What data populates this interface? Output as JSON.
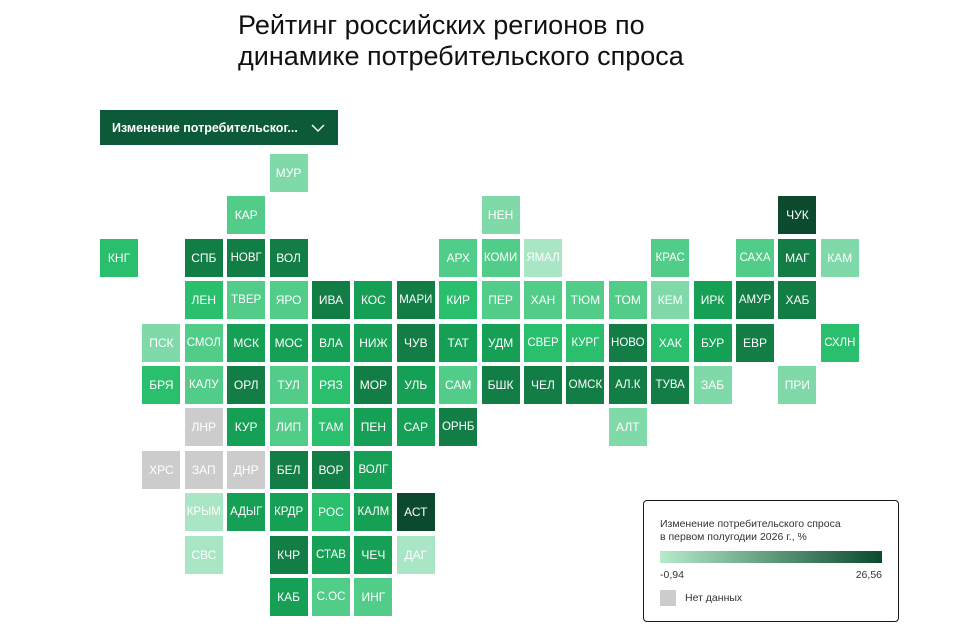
{
  "title": {
    "line1": "Рейтинг российских регионов по",
    "line2": "динамике потребительского спроса"
  },
  "dropdown": {
    "label": "Изменение потребительског...",
    "icon": "chevron-down-icon"
  },
  "legend": {
    "title_line1": "Изменение потребительского спроса",
    "title_line2": "в первом полугодии 2026 г., %",
    "min_label": "-0,94",
    "max_label": "26,56",
    "no_data_label": "Нет данных",
    "color_min": "#b6ebcc",
    "color_max": "#0b4a2e",
    "no_data_color": "#cccccc"
  },
  "colors": {
    "c1": "#a8e6c5",
    "c2": "#7fd9a8",
    "c3": "#52cc89",
    "c4": "#29bf6c",
    "c5": "#16a055",
    "c6": "#137d46",
    "c7": "#0b4a2e",
    "nd": "#cccccc",
    "accent": "#0c5a37"
  },
  "regions": [
    {
      "label": "МУР",
      "col": 4,
      "row": 0,
      "shade": "c2"
    },
    {
      "label": "КАР",
      "col": 3,
      "row": 1,
      "shade": "c3"
    },
    {
      "label": "НЕН",
      "col": 9,
      "row": 1,
      "shade": "c2"
    },
    {
      "label": "ЧУК",
      "col": 16,
      "row": 1,
      "shade": "c7"
    },
    {
      "label": "КНГ",
      "col": 0,
      "row": 2,
      "shade": "c4"
    },
    {
      "label": "СПБ",
      "col": 2,
      "row": 2,
      "shade": "c6"
    },
    {
      "label": "НОВГ",
      "col": 3,
      "row": 2,
      "shade": "c6"
    },
    {
      "label": "ВОЛ",
      "col": 4,
      "row": 2,
      "shade": "c6"
    },
    {
      "label": "АРХ",
      "col": 8,
      "row": 2,
      "shade": "c3"
    },
    {
      "label": "КОМИ",
      "col": 9,
      "row": 2,
      "shade": "c3"
    },
    {
      "label": "ЯМАЛ",
      "col": 10,
      "row": 2,
      "shade": "c1"
    },
    {
      "label": "КРАС",
      "col": 13,
      "row": 2,
      "shade": "c3"
    },
    {
      "label": "САХА",
      "col": 15,
      "row": 2,
      "shade": "c3"
    },
    {
      "label": "МАГ",
      "col": 16,
      "row": 2,
      "shade": "c6"
    },
    {
      "label": "КАМ",
      "col": 17,
      "row": 2,
      "shade": "c2"
    },
    {
      "label": "ЛЕН",
      "col": 2,
      "row": 3,
      "shade": "c4"
    },
    {
      "label": "ТВЕР",
      "col": 3,
      "row": 3,
      "shade": "c3"
    },
    {
      "label": "ЯРО",
      "col": 4,
      "row": 3,
      "shade": "c3"
    },
    {
      "label": "ИВА",
      "col": 5,
      "row": 3,
      "shade": "c6"
    },
    {
      "label": "КОС",
      "col": 6,
      "row": 3,
      "shade": "c5"
    },
    {
      "label": "МАРИ",
      "col": 7,
      "row": 3,
      "shade": "c6"
    },
    {
      "label": "КИР",
      "col": 8,
      "row": 3,
      "shade": "c4"
    },
    {
      "label": "ПЕР",
      "col": 9,
      "row": 3,
      "shade": "c3"
    },
    {
      "label": "ХАН",
      "col": 10,
      "row": 3,
      "shade": "c3"
    },
    {
      "label": "ТЮМ",
      "col": 11,
      "row": 3,
      "shade": "c3"
    },
    {
      "label": "ТОМ",
      "col": 12,
      "row": 3,
      "shade": "c3"
    },
    {
      "label": "КЕМ",
      "col": 13,
      "row": 3,
      "shade": "c2"
    },
    {
      "label": "ИРК",
      "col": 14,
      "row": 3,
      "shade": "c5"
    },
    {
      "label": "АМУР",
      "col": 15,
      "row": 3,
      "shade": "c6"
    },
    {
      "label": "ХАБ",
      "col": 16,
      "row": 3,
      "shade": "c6"
    },
    {
      "label": "ПСК",
      "col": 1,
      "row": 4,
      "shade": "c2"
    },
    {
      "label": "СМОЛ",
      "col": 2,
      "row": 4,
      "shade": "c3"
    },
    {
      "label": "МСК",
      "col": 3,
      "row": 4,
      "shade": "c5"
    },
    {
      "label": "МОС",
      "col": 4,
      "row": 4,
      "shade": "c5"
    },
    {
      "label": "ВЛА",
      "col": 5,
      "row": 4,
      "shade": "c5"
    },
    {
      "label": "НИЖ",
      "col": 6,
      "row": 4,
      "shade": "c5"
    },
    {
      "label": "ЧУВ",
      "col": 7,
      "row": 4,
      "shade": "c6"
    },
    {
      "label": "ТАТ",
      "col": 8,
      "row": 4,
      "shade": "c5"
    },
    {
      "label": "УДМ",
      "col": 9,
      "row": 4,
      "shade": "c5"
    },
    {
      "label": "СВЕР",
      "col": 10,
      "row": 4,
      "shade": "c4"
    },
    {
      "label": "КУРГ",
      "col": 11,
      "row": 4,
      "shade": "c4"
    },
    {
      "label": "НОВО",
      "col": 12,
      "row": 4,
      "shade": "c6"
    },
    {
      "label": "ХАК",
      "col": 13,
      "row": 4,
      "shade": "c4"
    },
    {
      "label": "БУР",
      "col": 14,
      "row": 4,
      "shade": "c5"
    },
    {
      "label": "ЕВР",
      "col": 15,
      "row": 4,
      "shade": "c6"
    },
    {
      "label": "СХЛН",
      "col": 17,
      "row": 4,
      "shade": "c4"
    },
    {
      "label": "БРЯ",
      "col": 1,
      "row": 5,
      "shade": "c4"
    },
    {
      "label": "КАЛУ",
      "col": 2,
      "row": 5,
      "shade": "c3"
    },
    {
      "label": "ОРЛ",
      "col": 3,
      "row": 5,
      "shade": "c6"
    },
    {
      "label": "ТУЛ",
      "col": 4,
      "row": 5,
      "shade": "c3"
    },
    {
      "label": "РЯЗ",
      "col": 5,
      "row": 5,
      "shade": "c4"
    },
    {
      "label": "МОР",
      "col": 6,
      "row": 5,
      "shade": "c6"
    },
    {
      "label": "УЛЬ",
      "col": 7,
      "row": 5,
      "shade": "c5"
    },
    {
      "label": "САМ",
      "col": 8,
      "row": 5,
      "shade": "c3"
    },
    {
      "label": "БШК",
      "col": 9,
      "row": 5,
      "shade": "c6"
    },
    {
      "label": "ЧЕЛ",
      "col": 10,
      "row": 5,
      "shade": "c6"
    },
    {
      "label": "ОМСК",
      "col": 11,
      "row": 5,
      "shade": "c6"
    },
    {
      "label": "АЛ.К",
      "col": 12,
      "row": 5,
      "shade": "c6"
    },
    {
      "label": "ТУВА",
      "col": 13,
      "row": 5,
      "shade": "c6"
    },
    {
      "label": "ЗАБ",
      "col": 14,
      "row": 5,
      "shade": "c2"
    },
    {
      "label": "ПРИ",
      "col": 16,
      "row": 5,
      "shade": "c2"
    },
    {
      "label": "ЛНР",
      "col": 2,
      "row": 6,
      "shade": "nd"
    },
    {
      "label": "КУР",
      "col": 3,
      "row": 6,
      "shade": "c5"
    },
    {
      "label": "ЛИП",
      "col": 4,
      "row": 6,
      "shade": "c3"
    },
    {
      "label": "ТАМ",
      "col": 5,
      "row": 6,
      "shade": "c4"
    },
    {
      "label": "ПЕН",
      "col": 6,
      "row": 6,
      "shade": "c5"
    },
    {
      "label": "САР",
      "col": 7,
      "row": 6,
      "shade": "c5"
    },
    {
      "label": "ОРНБ",
      "col": 8,
      "row": 6,
      "shade": "c6"
    },
    {
      "label": "АЛТ",
      "col": 12,
      "row": 6,
      "shade": "c2"
    },
    {
      "label": "ХРС",
      "col": 1,
      "row": 7,
      "shade": "nd"
    },
    {
      "label": "ЗАП",
      "col": 2,
      "row": 7,
      "shade": "nd"
    },
    {
      "label": "ДНР",
      "col": 3,
      "row": 7,
      "shade": "nd"
    },
    {
      "label": "БЕЛ",
      "col": 4,
      "row": 7,
      "shade": "c6"
    },
    {
      "label": "ВОР",
      "col": 5,
      "row": 7,
      "shade": "c6"
    },
    {
      "label": "ВОЛГ",
      "col": 6,
      "row": 7,
      "shade": "c5"
    },
    {
      "label": "КРЫМ",
      "col": 2,
      "row": 8,
      "shade": "c1"
    },
    {
      "label": "АДЫГ",
      "col": 3,
      "row": 8,
      "shade": "c5"
    },
    {
      "label": "КРДР",
      "col": 4,
      "row": 8,
      "shade": "c5"
    },
    {
      "label": "РОС",
      "col": 5,
      "row": 8,
      "shade": "c4"
    },
    {
      "label": "КАЛМ",
      "col": 6,
      "row": 8,
      "shade": "c5"
    },
    {
      "label": "АСТ",
      "col": 7,
      "row": 8,
      "shade": "c7"
    },
    {
      "label": "СВС",
      "col": 2,
      "row": 9,
      "shade": "c1"
    },
    {
      "label": "КЧР",
      "col": 4,
      "row": 9,
      "shade": "c6"
    },
    {
      "label": "СТАВ",
      "col": 5,
      "row": 9,
      "shade": "c5"
    },
    {
      "label": "ЧЕЧ",
      "col": 6,
      "row": 9,
      "shade": "c5"
    },
    {
      "label": "ДАГ",
      "col": 7,
      "row": 9,
      "shade": "c1"
    },
    {
      "label": "КАБ",
      "col": 4,
      "row": 10,
      "shade": "c5"
    },
    {
      "label": "С.ОС",
      "col": 5,
      "row": 10,
      "shade": "c3"
    },
    {
      "label": "ИНГ",
      "col": 6,
      "row": 10,
      "shade": "c3"
    }
  ]
}
